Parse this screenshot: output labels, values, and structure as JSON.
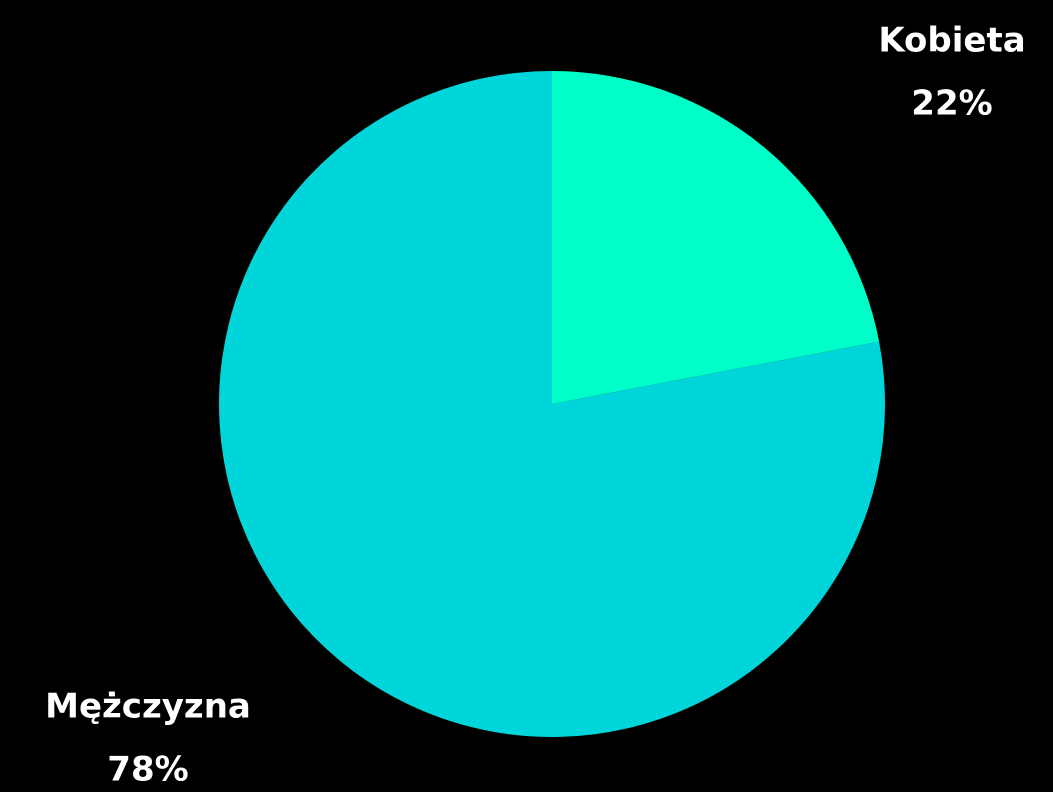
{
  "chart_data": {
    "type": "pie",
    "categories": [
      "Kobieta",
      "Mężczyzna"
    ],
    "values": [
      22,
      78
    ],
    "value_labels": [
      "22%",
      "78%"
    ],
    "colors": [
      "#00ffc8",
      "#00d6d9"
    ]
  }
}
